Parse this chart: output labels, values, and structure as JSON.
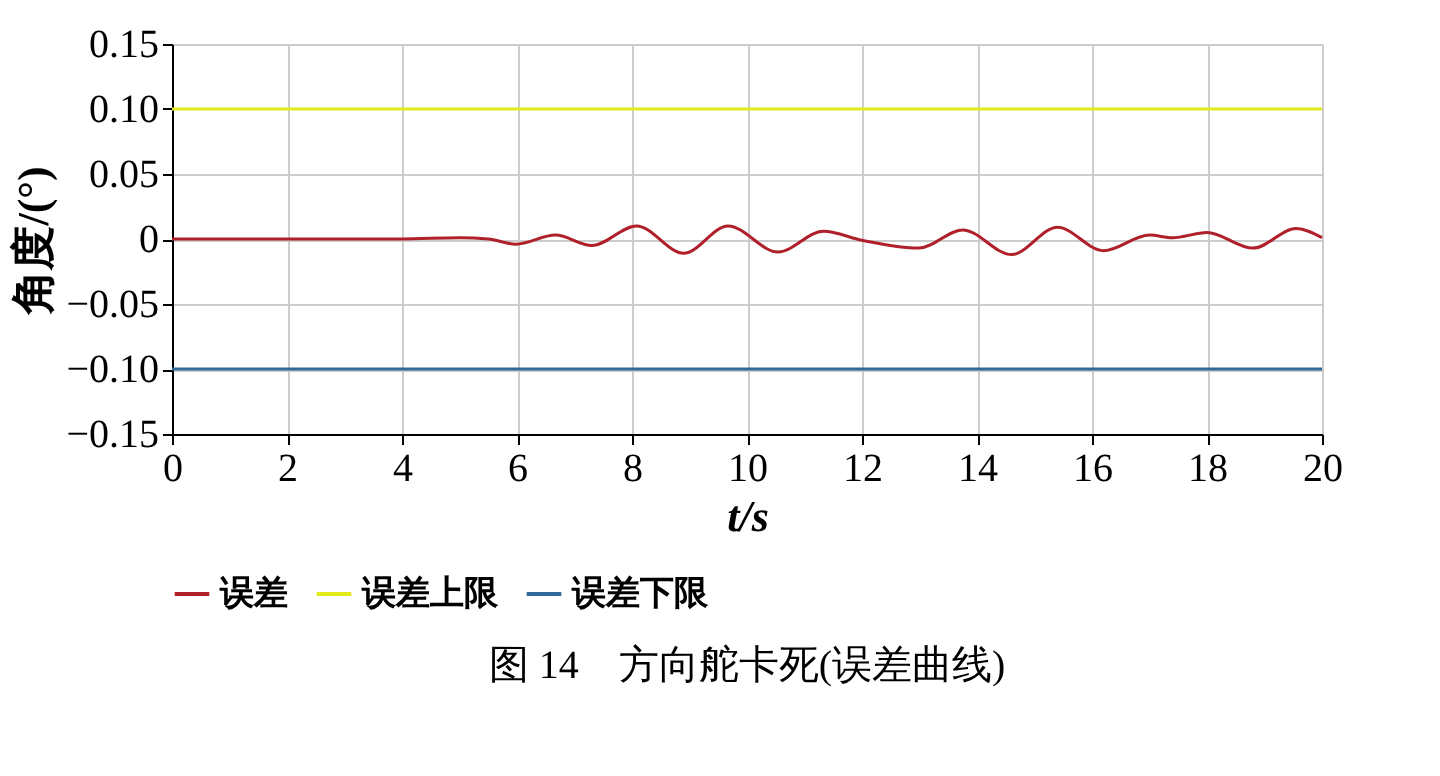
{
  "chart_data": {
    "type": "line",
    "xlabel": "t/s",
    "ylabel": "角度/(°)",
    "xlim": [
      0,
      20
    ],
    "xticks": [
      0,
      2,
      4,
      6,
      8,
      10,
      12,
      14,
      16,
      18,
      20
    ],
    "ylim": [
      -0.15,
      0.15
    ],
    "yticks": [
      {
        "value": -0.15,
        "label": "−0.15"
      },
      {
        "value": -0.1,
        "label": "−0.10"
      },
      {
        "value": -0.05,
        "label": "−0.05"
      },
      0,
      0.05,
      {
        "value": 0.1,
        "label": "0.10"
      },
      0.15
    ],
    "grid": true,
    "legend": "bottom",
    "marker": "none",
    "line_style": "solid",
    "series": [
      {
        "name": "误差",
        "color": "#b0202a",
        "x": [
          0,
          2,
          4,
          5,
          5.5,
          5.98,
          6.67,
          7.3,
          8.08,
          8.9,
          9.67,
          10.54,
          11.33,
          12.0,
          12.99,
          13.75,
          14.6,
          15.4,
          16.2,
          17.0,
          17.4,
          18.0,
          18.8,
          19.55,
          20
        ],
        "values": [
          0,
          0,
          0,
          0.001,
          0,
          -0.004,
          0.003,
          -0.005,
          0.01,
          -0.011,
          0.01,
          -0.01,
          0.006,
          -0.001,
          -0.007,
          0.007,
          -0.012,
          0.009,
          -0.009,
          0.003,
          0.001,
          0.005,
          -0.007,
          0.008,
          0.001
        ]
      },
      {
        "name": "误差上限",
        "color": "#e2ea1c",
        "x": [
          0,
          20
        ],
        "values": [
          0.1,
          0.1
        ]
      },
      {
        "name": "误差下限",
        "color": "#2f6a9a",
        "x": [
          0,
          20
        ],
        "values": [
          -0.1,
          -0.1
        ]
      }
    ],
    "annotations": [
      "图 14　方向舵卡死(误差曲线)"
    ]
  }
}
